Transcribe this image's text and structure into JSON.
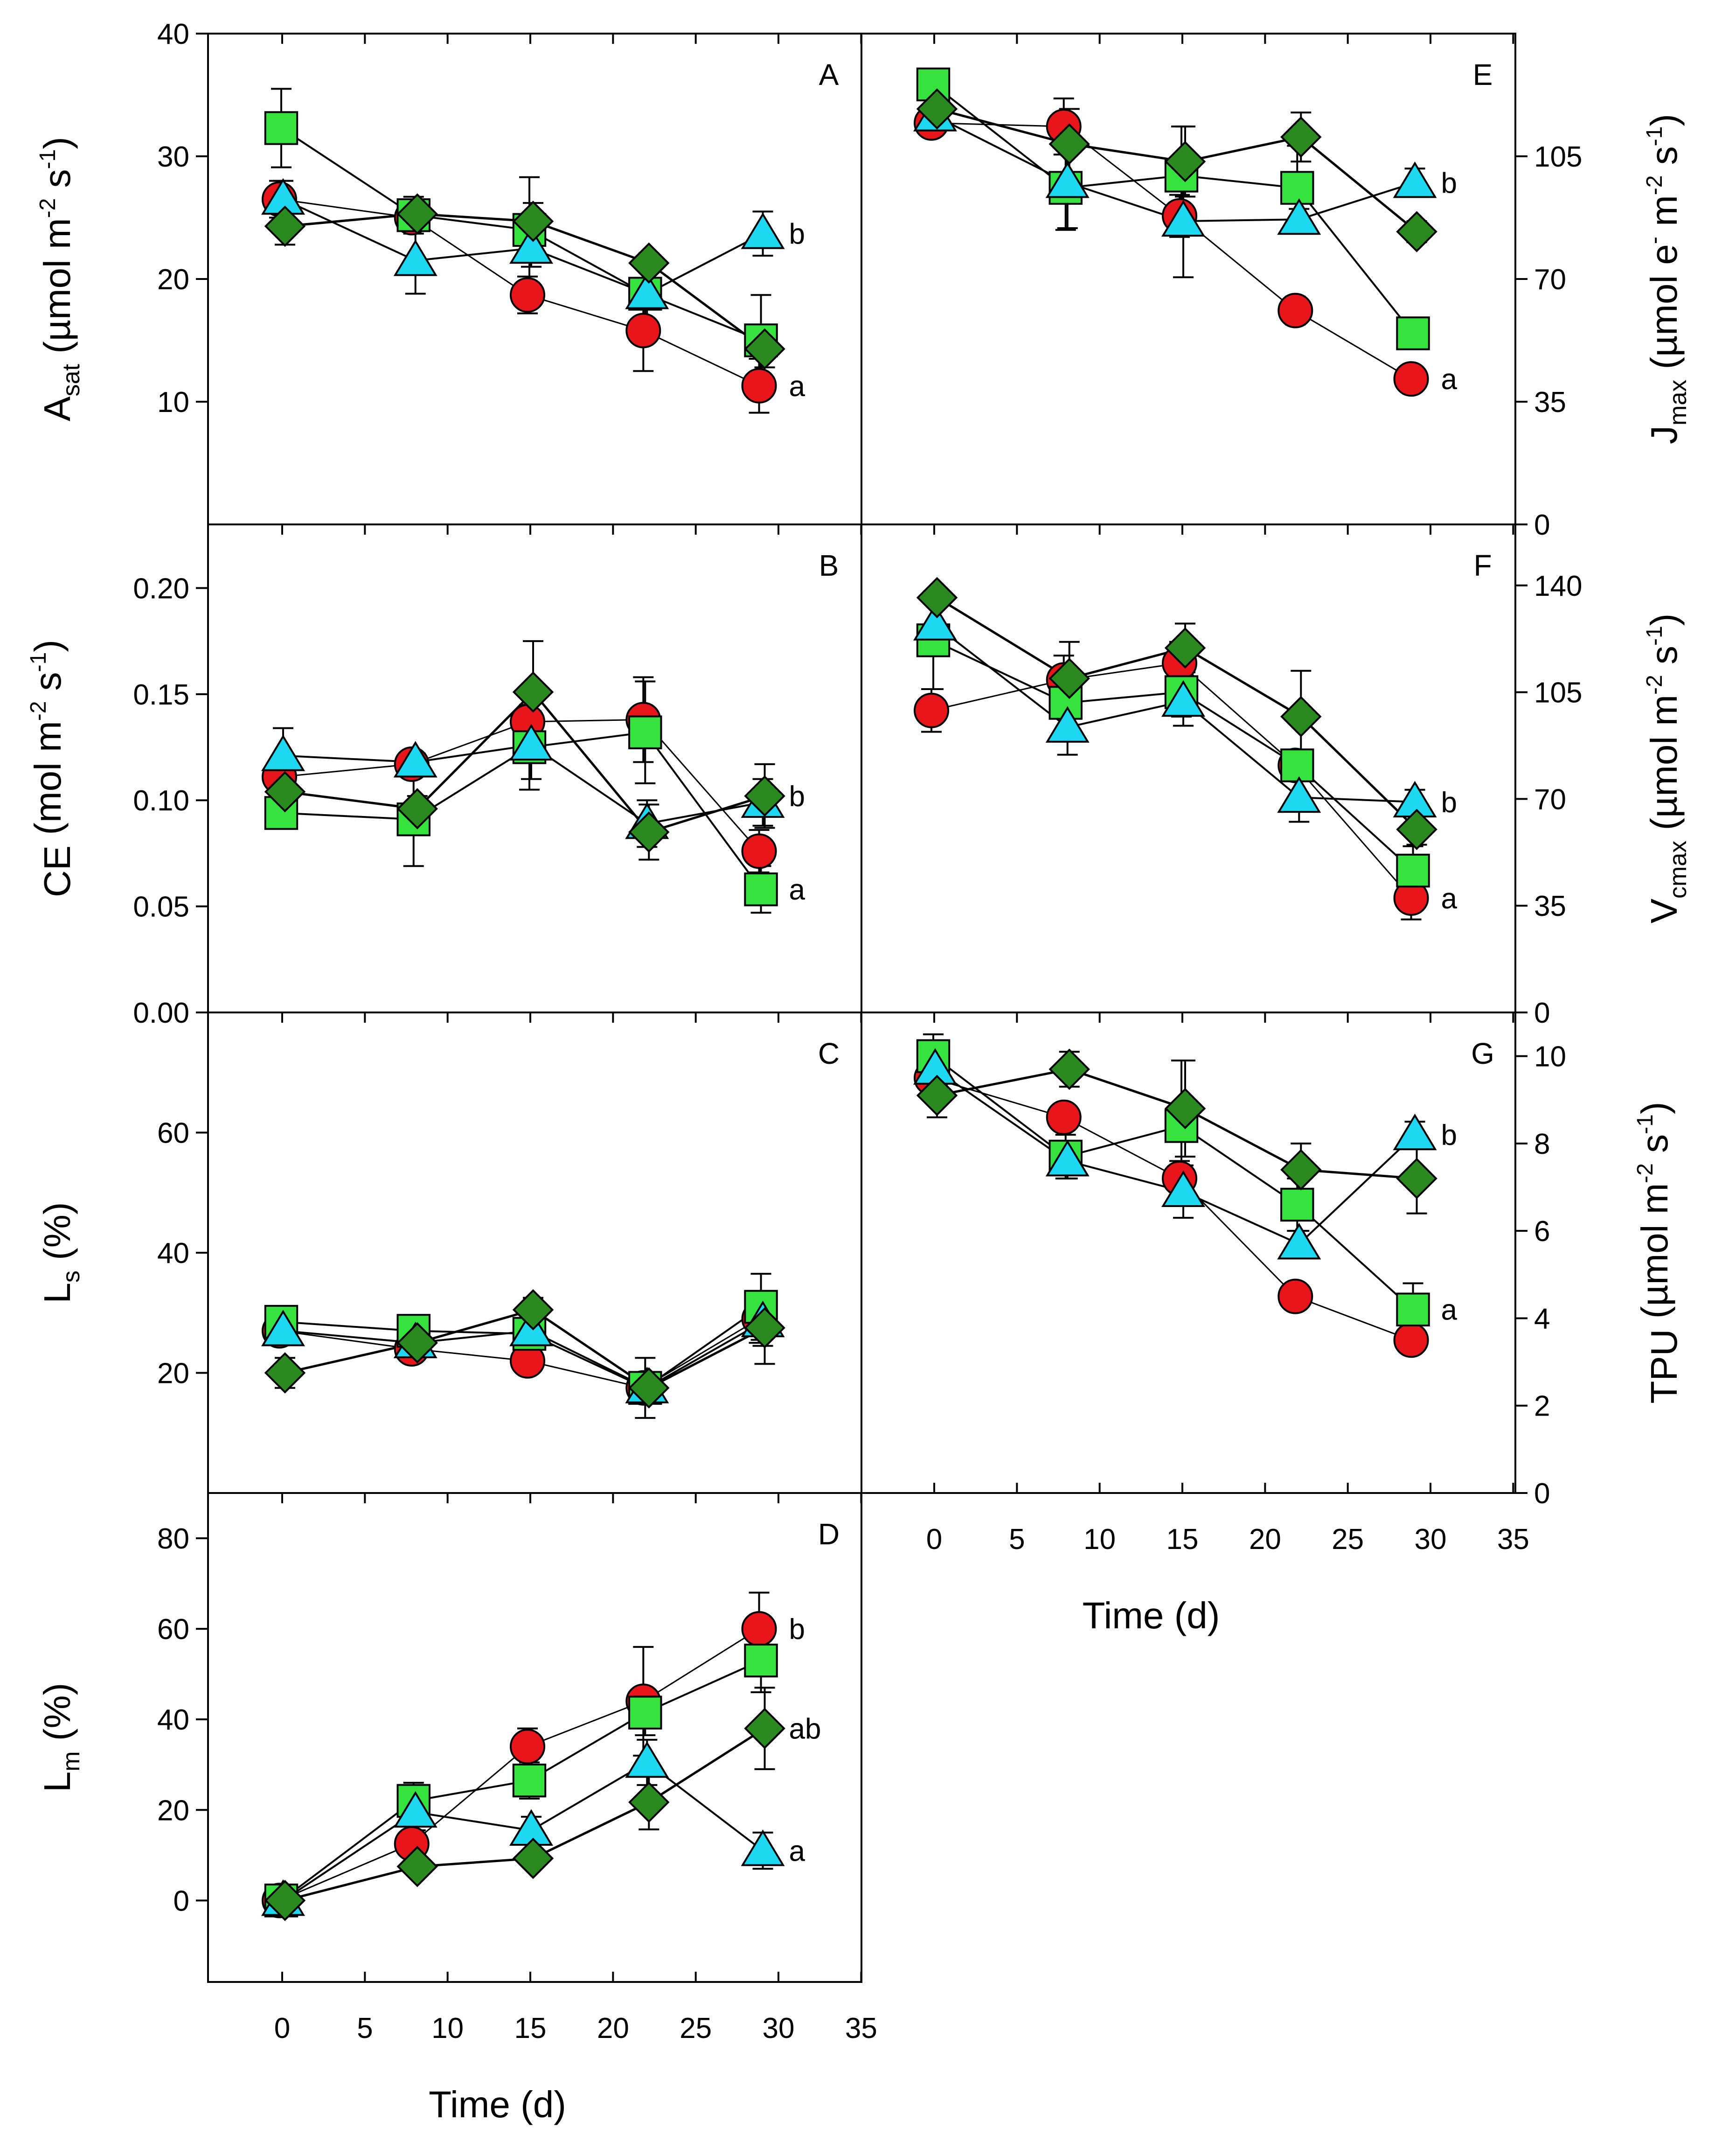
{
  "figure": {
    "x_title": "Time (d)",
    "x_ticks": [
      "0",
      "5",
      "10",
      "15",
      "20",
      "25",
      "30",
      "35"
    ]
  },
  "chart_data": [
    {
      "id": "A",
      "type": "scatter",
      "panel_letter": "A",
      "ylabel": {
        "base": "A",
        "sub": "sat",
        "unit": " (µmol m",
        "sup1": "-2",
        "mid": " s",
        "sup2": "-1",
        "end": ")"
      },
      "ylim": [
        0,
        40
      ],
      "yticks": [
        10,
        20,
        30,
        40
      ],
      "ytick_labels": [
        "10",
        "20",
        "30",
        "40"
      ],
      "x": [
        0,
        8,
        15,
        22,
        29
      ],
      "series": [
        {
          "name": "circle-red",
          "values": [
            26.5,
            25.0,
            18.7,
            15.8,
            11.3
          ],
          "err": [
            1.5,
            1.0,
            1.5,
            3.3,
            2.2
          ]
        },
        {
          "name": "square-green",
          "values": [
            32.3,
            25.2,
            24.0,
            18.8,
            15.0
          ],
          "err": [
            3.2,
            1.5,
            4.3,
            2.5,
            3.7
          ]
        },
        {
          "name": "triangle-cyan",
          "values": [
            26.5,
            21.5,
            22.5,
            18.8,
            23.7
          ],
          "err": [
            1.5,
            2.7,
            1.5,
            2.5,
            1.8
          ]
        },
        {
          "name": "diamond-darkgreen",
          "values": [
            24.3,
            25.3,
            24.7,
            21.3,
            14.3
          ],
          "err": [
            1.5,
            0.8,
            1.5,
            0.8,
            1.5
          ]
        }
      ],
      "annotations": [
        {
          "text": "b",
          "series": "triangle-cyan"
        },
        {
          "text": "a",
          "series": "circle-red"
        }
      ]
    },
    {
      "id": "B",
      "type": "scatter",
      "panel_letter": "B",
      "ylabel": {
        "base": "CE",
        "sub": "",
        "unit": " (mol m",
        "sup1": "-2",
        "mid": " s",
        "sup2": "-1",
        "end": ")"
      },
      "ylim": [
        0,
        0.23
      ],
      "yticks": [
        0,
        0.05,
        0.1,
        0.15,
        0.2
      ],
      "ytick_labels": [
        "0.00",
        "0.05",
        "0.10",
        "0.15",
        "0.20"
      ],
      "x": [
        0,
        8,
        15,
        22,
        29
      ],
      "series": [
        {
          "name": "circle-red",
          "values": [
            0.111,
            0.117,
            0.137,
            0.138,
            0.076
          ],
          "err": [
            0.006,
            0.004,
            0.013,
            0.02,
            0.01
          ]
        },
        {
          "name": "square-green",
          "values": [
            0.094,
            0.091,
            0.125,
            0.132,
            0.058
          ],
          "err": [
            0.006,
            0.022,
            0.02,
            0.024,
            0.011
          ]
        },
        {
          "name": "triangle-cyan",
          "values": [
            0.121,
            0.118,
            0.126,
            0.089,
            0.099
          ],
          "err": [
            0.013,
            0.004,
            0.016,
            0.011,
            0.011
          ]
        },
        {
          "name": "diamond-darkgreen",
          "values": [
            0.104,
            0.096,
            0.151,
            0.085,
            0.102
          ],
          "err": [
            0.013,
            0.006,
            0.024,
            0.013,
            0.015
          ]
        }
      ],
      "annotations": [
        {
          "text": "b",
          "series": "diamond-darkgreen"
        },
        {
          "text": "a",
          "series": "square-green"
        }
      ]
    },
    {
      "id": "C",
      "type": "scatter",
      "panel_letter": "C",
      "ylabel": {
        "base": "L",
        "sub": "s",
        "unit": " (%)",
        "sup1": "",
        "mid": "",
        "sup2": "",
        "end": ""
      },
      "ylim": [
        0,
        80
      ],
      "yticks": [
        20,
        40,
        60
      ],
      "ytick_labels": [
        "20",
        "40",
        "60"
      ],
      "x": [
        0,
        8,
        15,
        22,
        29
      ],
      "series": [
        {
          "name": "circle-red",
          "values": [
            27.0,
            24.0,
            22.0,
            17.5,
            29.0
          ],
          "err": [
            1.5,
            1.0,
            1.5,
            1.5,
            4.0
          ]
        },
        {
          "name": "square-green",
          "values": [
            28.5,
            27.0,
            26.5,
            17.5,
            31.0
          ],
          "err": [
            2.5,
            1.5,
            2.0,
            5.0,
            5.5
          ]
        },
        {
          "name": "triangle-cyan",
          "values": [
            27.0,
            25.0,
            27.0,
            17.5,
            28.5
          ],
          "err": [
            1.5,
            1.5,
            1.5,
            1.5,
            4.0
          ]
        },
        {
          "name": "diamond-darkgreen",
          "values": [
            20.0,
            25.0,
            30.5,
            17.5,
            27.5
          ],
          "err": [
            2.5,
            1.5,
            2.0,
            2.0,
            6.0
          ]
        }
      ],
      "annotations": []
    },
    {
      "id": "D",
      "type": "scatter",
      "panel_letter": "D",
      "ylabel": {
        "base": "L",
        "sub": "m",
        "unit": " (%)",
        "sup1": "",
        "mid": "",
        "sup2": "",
        "end": ""
      },
      "ylim": [
        -18,
        90
      ],
      "yticks": [
        0,
        20,
        40,
        60,
        80
      ],
      "ytick_labels": [
        "0",
        "20",
        "40",
        "60",
        "80"
      ],
      "x": [
        0,
        8,
        15,
        22,
        29
      ],
      "series": [
        {
          "name": "circle-red",
          "values": [
            0,
            12.5,
            34.0,
            44.0,
            60.0
          ],
          "err": [
            0,
            2.0,
            4.0,
            12.0,
            8.0
          ]
        },
        {
          "name": "square-green",
          "values": [
            0,
            22.0,
            26.5,
            41.5,
            53.0
          ],
          "err": [
            0,
            4.0,
            4.0,
            5.0,
            7.0
          ]
        },
        {
          "name": "triangle-cyan",
          "values": [
            0,
            19.5,
            15.5,
            30.5,
            11.0
          ],
          "err": [
            0,
            4.0,
            3.0,
            5.0,
            4.0
          ]
        },
        {
          "name": "diamond-darkgreen",
          "values": [
            0,
            7.5,
            9.3,
            21.7,
            38.0
          ],
          "err": [
            0,
            1.5,
            1.5,
            6.0,
            9.0
          ]
        }
      ],
      "annotations": [
        {
          "text": "b",
          "series": "circle-red"
        },
        {
          "text": "ab",
          "series": "diamond-darkgreen"
        },
        {
          "text": "a",
          "series": "triangle-cyan"
        }
      ]
    },
    {
      "id": "E",
      "type": "scatter",
      "panel_letter": "E",
      "ylabel": {
        "base": "J",
        "sub": "max",
        "unit": " (µmol e",
        "sup1": "-",
        "mid": " m",
        "sup2": "-2",
        "end": " s",
        "sup3": "-1",
        "close": ")"
      },
      "ylim": [
        0,
        140
      ],
      "yticks": [
        0,
        35,
        70,
        105
      ],
      "ytick_labels": [
        "0",
        "35",
        "70",
        "105"
      ],
      "x": [
        0,
        8,
        15,
        22,
        29
      ],
      "series": [
        {
          "name": "circle-red",
          "values": [
            114.5,
            113.5,
            88.0,
            61.0,
            41.5
          ],
          "err": [
            1.5,
            8.0,
            6.0,
            4.0,
            3.0
          ]
        },
        {
          "name": "square-green",
          "values": [
            125.5,
            96.0,
            99.5,
            96.0,
            54.5
          ],
          "err": [
            3.0,
            12.0,
            14.0,
            12.0,
            1.5
          ]
        },
        {
          "name": "triangle-cyan",
          "values": [
            116.5,
            97.5,
            86.5,
            87.0,
            97.5
          ],
          "err": [
            3.0,
            13.0,
            16.0,
            3.0,
            4.0
          ]
        },
        {
          "name": "diamond-darkgreen",
          "values": [
            118.5,
            108.5,
            103.5,
            110.5,
            83.5
          ],
          "err": [
            3.0,
            10.0,
            10.0,
            7.0,
            3.0
          ]
        }
      ],
      "annotations": [
        {
          "text": "b",
          "series": "triangle-cyan"
        },
        {
          "text": "a",
          "series": "circle-red"
        }
      ]
    },
    {
      "id": "F",
      "type": "scatter",
      "panel_letter": "F",
      "ylabel": {
        "base": "V",
        "sub": "cmax",
        "unit": " (µmol m",
        "sup1": "-2",
        "mid": " s",
        "sup2": "-1",
        "end": ")"
      },
      "ylim": [
        0,
        160
      ],
      "yticks": [
        0,
        35,
        70,
        105,
        140
      ],
      "ytick_labels": [
        "0",
        "35",
        "70",
        "105",
        "140"
      ],
      "x": [
        0,
        8,
        15,
        22,
        29
      ],
      "series": [
        {
          "name": "circle-red",
          "values": [
            99.0,
            109.0,
            114.5,
            81.0,
            37.5
          ],
          "err": [
            7.0,
            8.0,
            7.0,
            5.0,
            7.0
          ]
        },
        {
          "name": "square-green",
          "values": [
            122.0,
            101.5,
            105.0,
            81.0,
            46.5
          ],
          "err": [
            16.0,
            9.0,
            8.0,
            5.0,
            8.0
          ]
        },
        {
          "name": "triangle-cyan",
          "values": [
            127.0,
            93.5,
            102.0,
            70.5,
            69.0
          ],
          "err": [
            7.0,
            9.0,
            8.0,
            8.0,
            4.0
          ]
        },
        {
          "name": "diamond-darkgreen",
          "values": [
            136.0,
            109.5,
            119.5,
            97.0,
            60.0
          ],
          "err": [
            3.0,
            12.0,
            8.0,
            15.0,
            5.0
          ]
        }
      ],
      "annotations": [
        {
          "text": "b",
          "series": "triangle-cyan"
        },
        {
          "text": "a",
          "series": "circle-red"
        }
      ]
    },
    {
      "id": "G",
      "type": "scatter",
      "panel_letter": "G",
      "ylabel": {
        "base": "TPU",
        "sub": "",
        "unit": " (µmol m",
        "sup1": "-2",
        "mid": " s",
        "sup2": "-1",
        "end": ")"
      },
      "ylim": [
        0,
        11
      ],
      "yticks": [
        0,
        2,
        4,
        6,
        8,
        10
      ],
      "ytick_labels": [
        "0",
        "2",
        "4",
        "6",
        "8",
        "10"
      ],
      "x": [
        0,
        8,
        15,
        22,
        29
      ],
      "series": [
        {
          "name": "circle-red",
          "values": [
            9.5,
            8.6,
            7.2,
            4.5,
            3.5
          ],
          "err": [
            0.3,
            0.3,
            0.4,
            0.3,
            0.3
          ]
        },
        {
          "name": "square-green",
          "values": [
            10.0,
            7.7,
            8.4,
            6.6,
            4.2
          ],
          "err": [
            0.5,
            0.5,
            1.5,
            0.6,
            0.6
          ]
        },
        {
          "name": "triangle-cyan",
          "values": [
            9.7,
            7.6,
            6.9,
            5.7,
            8.2
          ],
          "err": [
            0.5,
            0.4,
            0.6,
            0.3,
            0.3
          ]
        },
        {
          "name": "diamond-darkgreen",
          "values": [
            9.1,
            9.7,
            8.8,
            7.4,
            7.2
          ],
          "err": [
            0.5,
            0.4,
            1.1,
            0.6,
            0.8
          ]
        }
      ],
      "annotations": [
        {
          "text": "b",
          "series": "triangle-cyan"
        },
        {
          "text": "a",
          "series": "square-green"
        }
      ]
    }
  ],
  "series_styles": {
    "circle-red": {
      "marker": "circle",
      "fill": "#e8151b"
    },
    "square-green": {
      "marker": "square",
      "fill": "#36e23e"
    },
    "triangle-cyan": {
      "marker": "triangle",
      "fill": "#1ed8f2"
    },
    "diamond-darkgreen": {
      "marker": "diamond",
      "fill": "#2a8a1f"
    }
  }
}
